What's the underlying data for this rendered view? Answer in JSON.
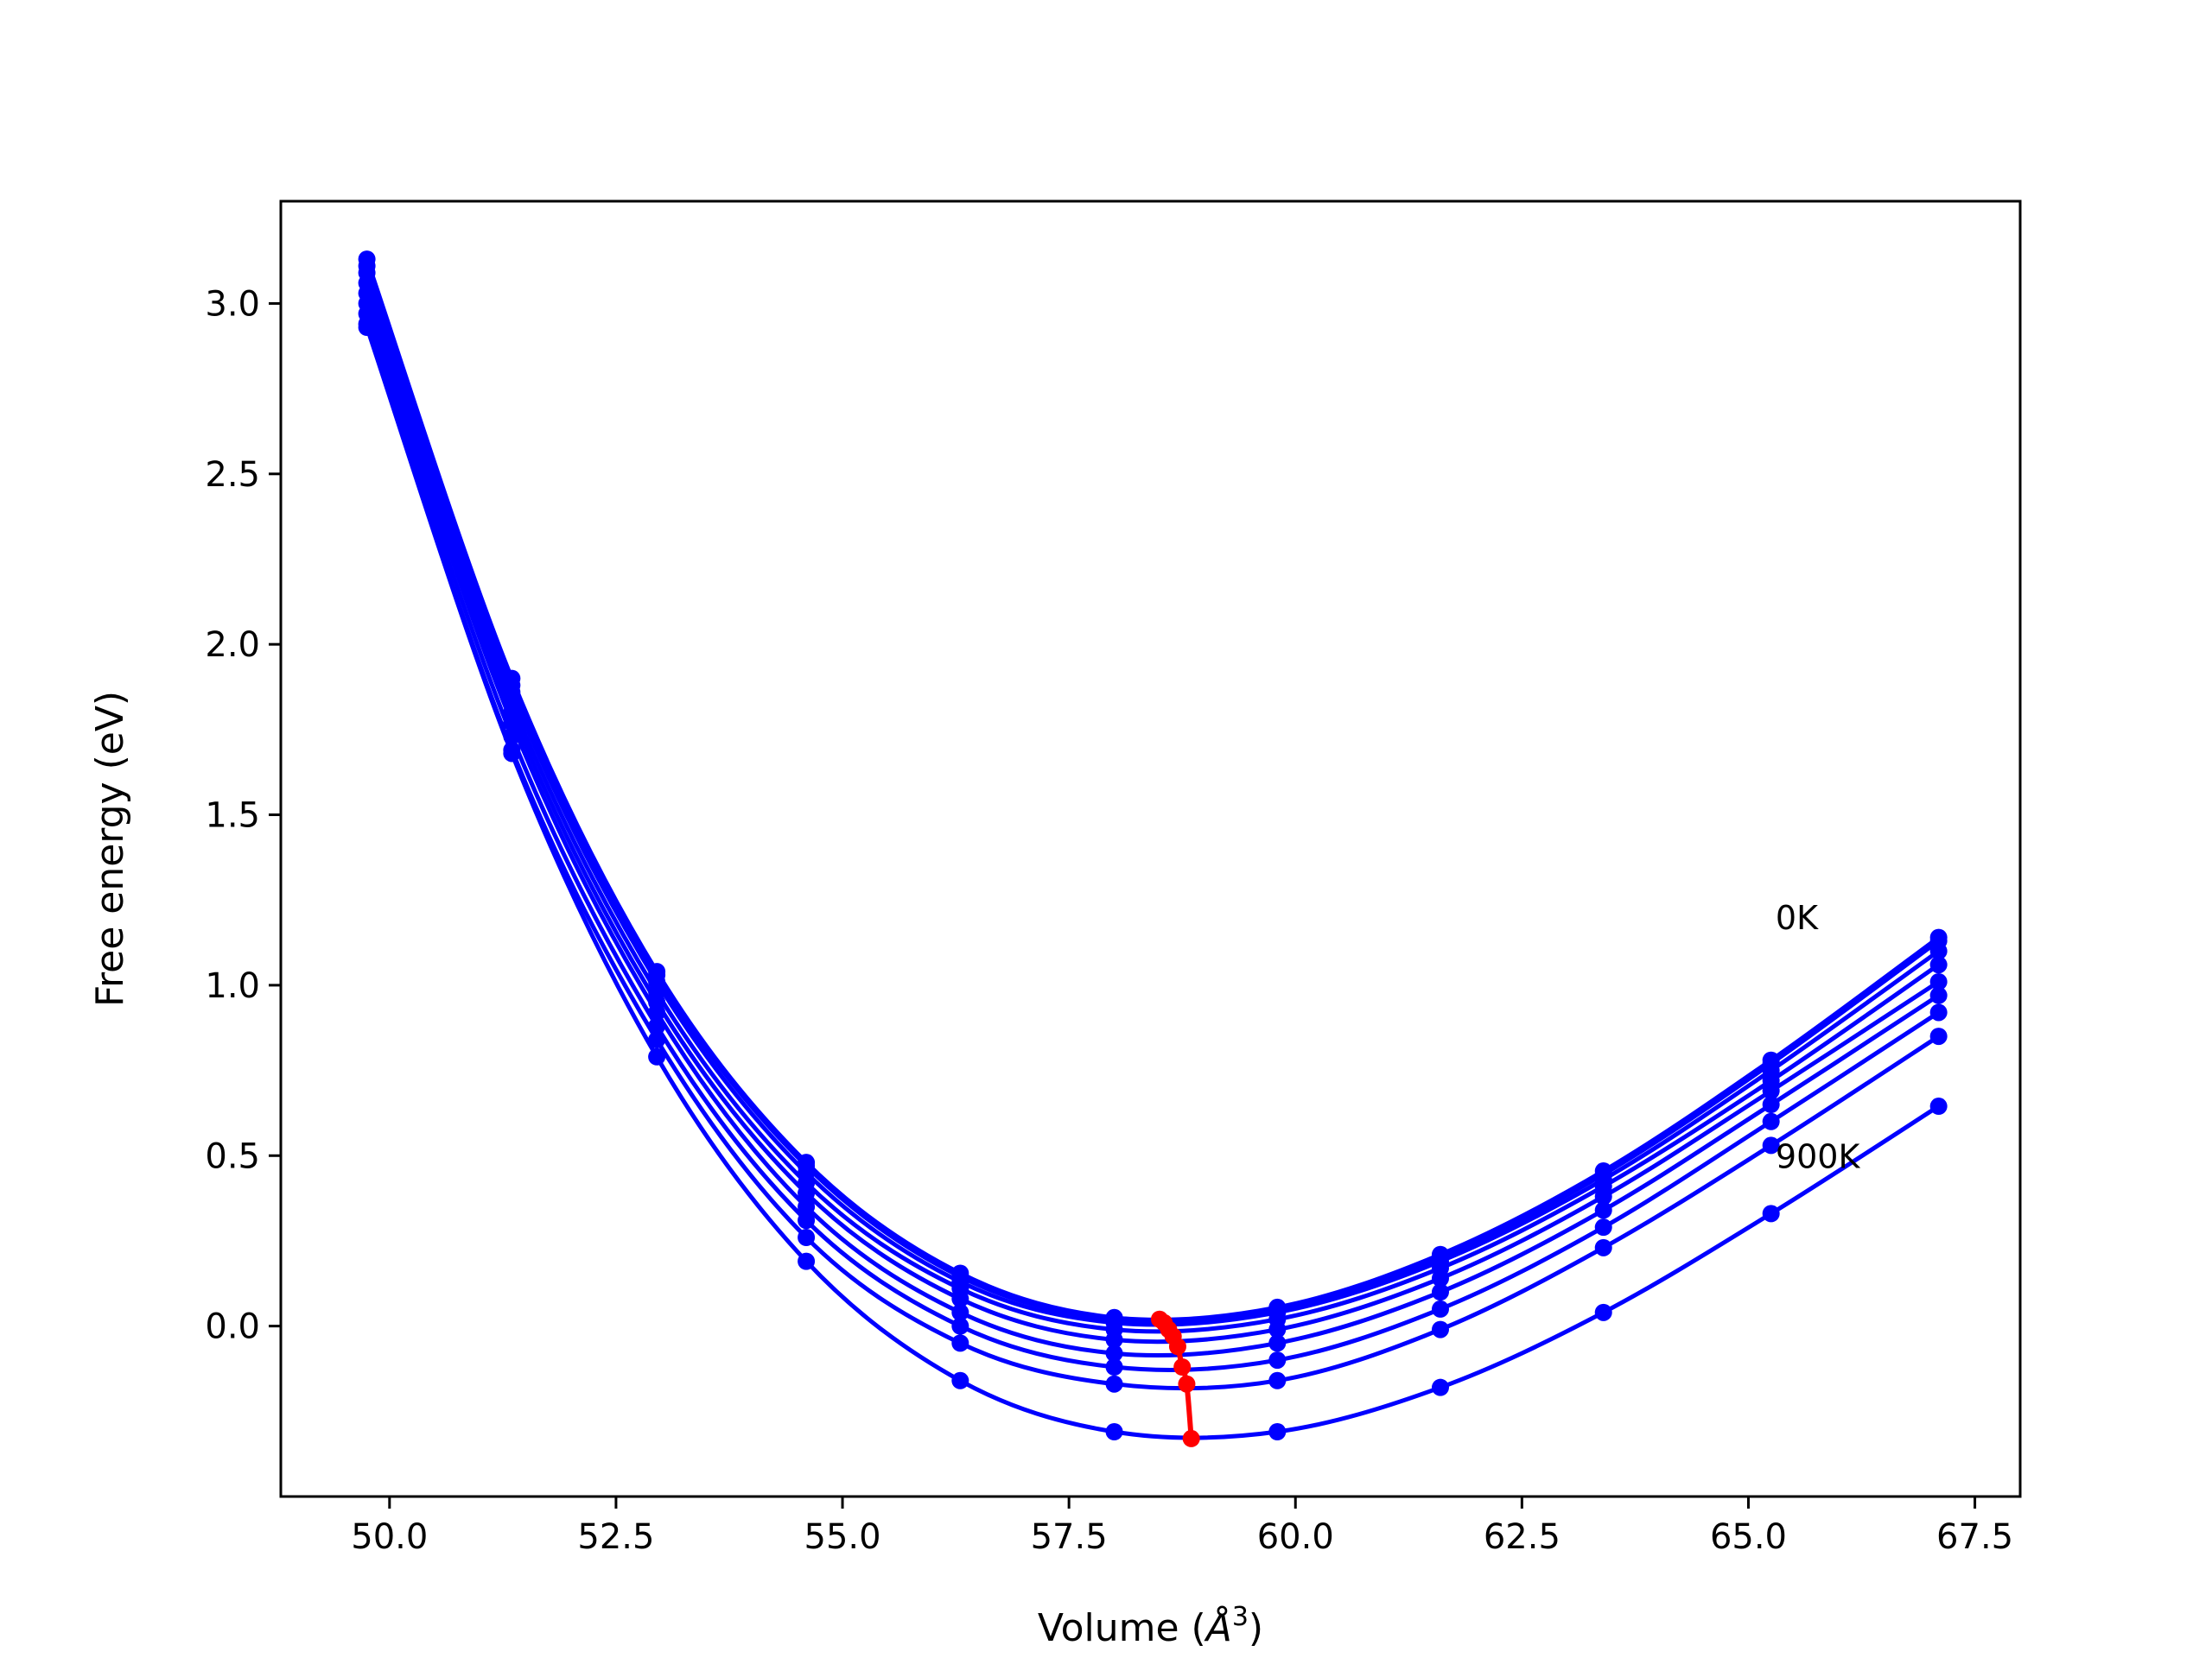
{
  "chart_data": {
    "type": "line",
    "title": "",
    "xlabel": "Volume",
    "xlabel_unit_base": "Å",
    "xlabel_unit_exp": "3",
    "ylabel": "Free energy (eV)",
    "xlim": [
      48.8,
      68.0
    ],
    "ylim": [
      -0.5,
      3.3
    ],
    "xticks": [
      50.0,
      52.5,
      55.0,
      57.5,
      60.0,
      62.5,
      65.0,
      67.5
    ],
    "xtick_labels": [
      "50.0",
      "52.5",
      "55.0",
      "57.5",
      "60.0",
      "62.5",
      "65.0",
      "67.5"
    ],
    "yticks": [
      0.0,
      0.5,
      1.0,
      1.5,
      2.0,
      2.5,
      3.0
    ],
    "ytick_labels": [
      "0.0",
      "0.5",
      "1.0",
      "1.5",
      "2.0",
      "2.5",
      "3.0"
    ],
    "grid": false,
    "legend": "none",
    "line_color": "#0000ff",
    "min_color": "#ff0000",
    "annotations": [
      {
        "text": "0K",
        "x": 65.3,
        "y": 1.2
      },
      {
        "text": "900K",
        "x": 65.3,
        "y": 0.5
      }
    ],
    "x": [
      49.75,
      51.35,
      52.95,
      54.6,
      56.3,
      58.0,
      59.8,
      61.6,
      63.4,
      65.25,
      67.1
    ],
    "series": [
      {
        "values": [
          3.13,
          1.9,
          1.04,
          0.48,
          0.155,
          0.025,
          0.055,
          0.21,
          0.455,
          0.78,
          1.14
        ]
      },
      {
        "values": [
          3.11,
          1.88,
          1.03,
          0.47,
          0.145,
          0.02,
          0.05,
          0.2,
          0.445,
          0.77,
          1.13
        ]
      },
      {
        "values": [
          3.09,
          1.86,
          1.01,
          0.45,
          0.13,
          0.01,
          0.04,
          0.19,
          0.43,
          0.75,
          1.1
        ]
      },
      {
        "values": [
          3.06,
          1.83,
          0.98,
          0.42,
          0.11,
          -0.01,
          0.02,
          0.17,
          0.41,
          0.72,
          1.06
        ]
      },
      {
        "values": [
          3.03,
          1.8,
          0.95,
          0.39,
          0.08,
          -0.04,
          -0.01,
          0.14,
          0.38,
          0.69,
          1.01
        ]
      },
      {
        "values": [
          3.0,
          1.77,
          0.92,
          0.35,
          0.04,
          -0.08,
          -0.05,
          0.1,
          0.34,
          0.65,
          0.97
        ]
      },
      {
        "values": [
          2.97,
          1.73,
          0.88,
          0.31,
          0.0,
          -0.12,
          -0.1,
          0.05,
          0.29,
          0.6,
          0.92
        ]
      },
      {
        "values": [
          2.94,
          1.69,
          0.84,
          0.26,
          -0.05,
          -0.17,
          -0.16,
          -0.01,
          0.23,
          0.53,
          0.85
        ]
      },
      {
        "values": [
          2.93,
          1.68,
          0.79,
          0.19,
          -0.16,
          -0.31,
          -0.31,
          -0.18,
          0.04,
          0.33,
          0.645
        ]
      }
    ],
    "minima": {
      "x": [
        58.5,
        58.55,
        58.6,
        58.65,
        58.7,
        58.75,
        58.8,
        58.85
      ],
      "y": [
        0.02,
        0.01,
        -0.01,
        -0.03,
        -0.06,
        -0.12,
        -0.17,
        -0.33
      ]
    }
  }
}
